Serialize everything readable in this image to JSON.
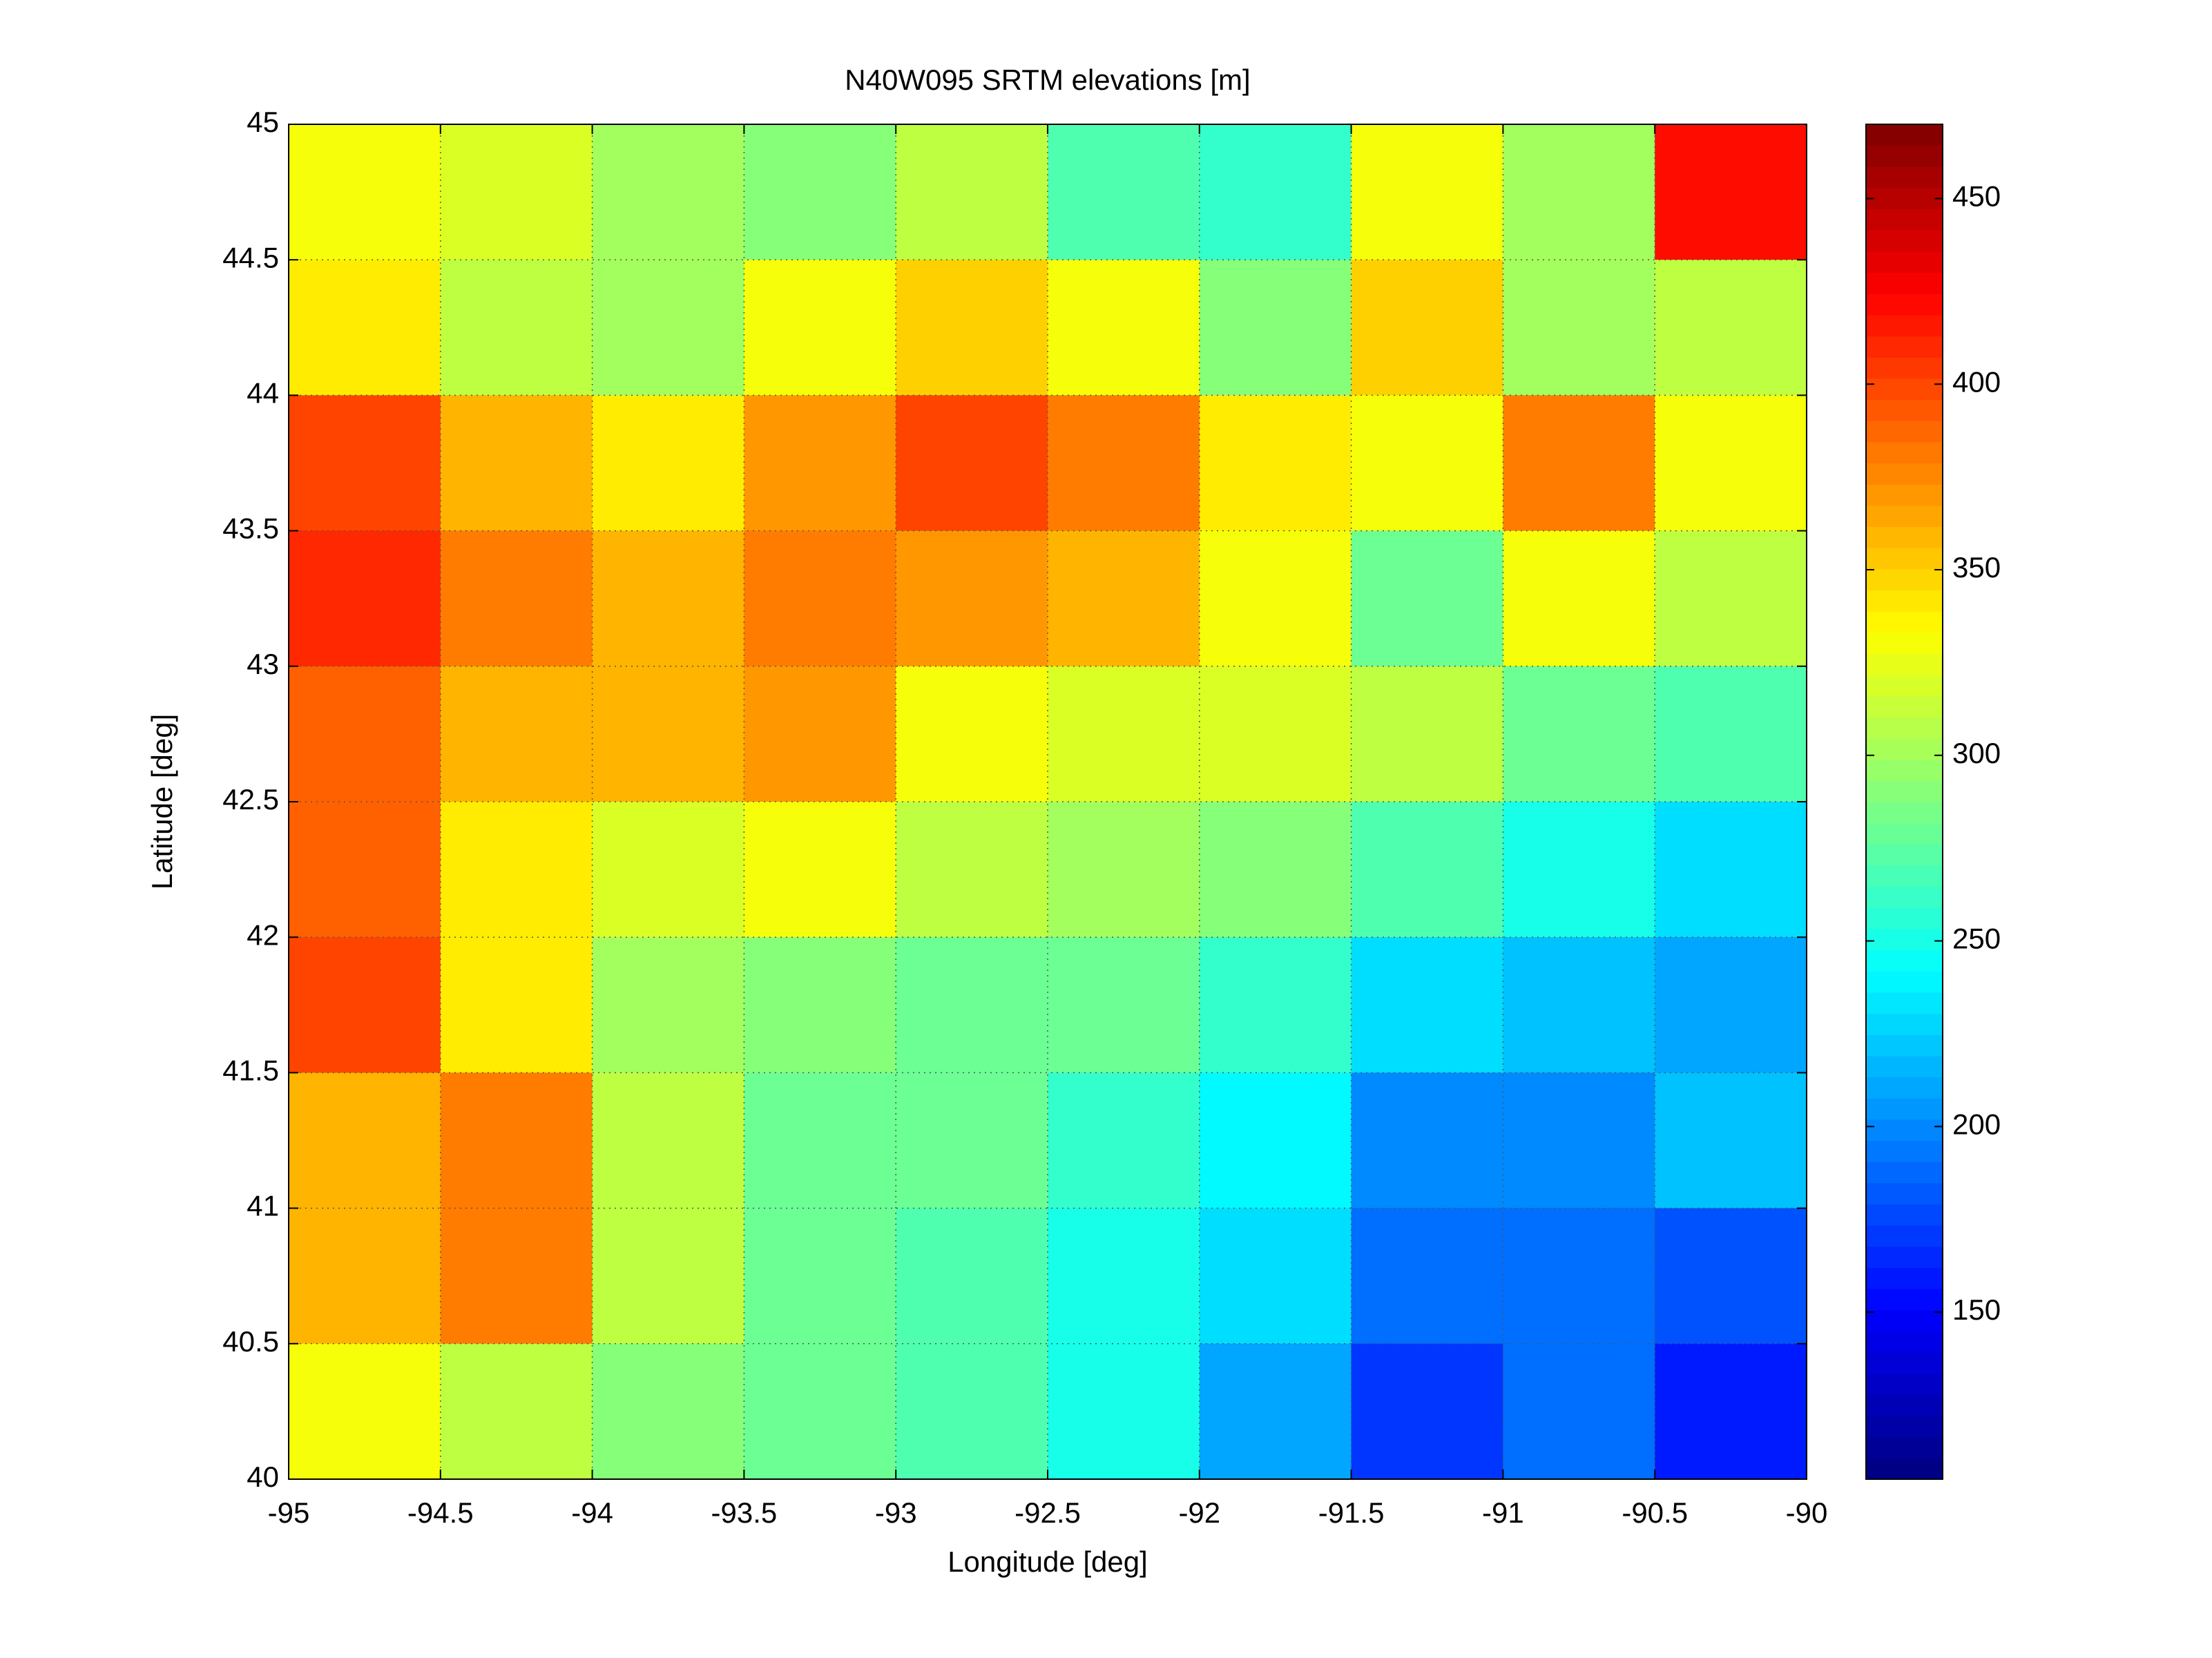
{
  "chart_data": {
    "type": "heatmap",
    "title": "N40W095 SRTM elevations [m]",
    "x_label": "Longitude [deg]",
    "y_label": "Latitude [deg]",
    "x": [
      -94.75,
      -94.25,
      -93.75,
      -93.25,
      -92.75,
      -92.25,
      -91.75,
      -91.25,
      -90.75,
      -90.25
    ],
    "y": [
      44.75,
      44.25,
      43.75,
      43.25,
      42.75,
      42.25,
      41.75,
      41.25,
      40.75,
      40.25
    ],
    "z": [
      [
        330,
        320,
        300,
        290,
        310,
        270,
        260,
        330,
        300,
        420
      ],
      [
        340,
        310,
        300,
        330,
        350,
        330,
        290,
        350,
        300,
        310
      ],
      [
        400,
        360,
        340,
        370,
        400,
        380,
        340,
        330,
        380,
        330
      ],
      [
        410,
        380,
        360,
        380,
        370,
        360,
        330,
        280,
        330,
        310
      ],
      [
        390,
        360,
        360,
        370,
        330,
        320,
        320,
        310,
        280,
        270
      ],
      [
        390,
        340,
        320,
        330,
        310,
        300,
        290,
        270,
        250,
        230
      ],
      [
        400,
        340,
        300,
        290,
        280,
        280,
        260,
        230,
        220,
        210
      ],
      [
        360,
        380,
        310,
        280,
        280,
        260,
        240,
        200,
        200,
        220
      ],
      [
        360,
        380,
        310,
        280,
        270,
        250,
        230,
        190,
        190,
        180
      ],
      [
        330,
        310,
        290,
        280,
        270,
        250,
        210,
        170,
        190,
        160
      ]
    ],
    "xlim": [
      -95,
      -90
    ],
    "xticks": [
      -95,
      -94.5,
      -94,
      -93.5,
      -93,
      -92.5,
      -92,
      -91.5,
      -91,
      -90.5,
      -90
    ],
    "ylim": [
      40,
      45
    ],
    "yticks": [
      40,
      40.5,
      41,
      41.5,
      42,
      42.5,
      43,
      43.5,
      44,
      44.5,
      45
    ],
    "colormap": "jet",
    "clim": [
      105,
      470
    ],
    "cticks": [
      150,
      200,
      250,
      300,
      350,
      400,
      450
    ],
    "grid": true
  }
}
